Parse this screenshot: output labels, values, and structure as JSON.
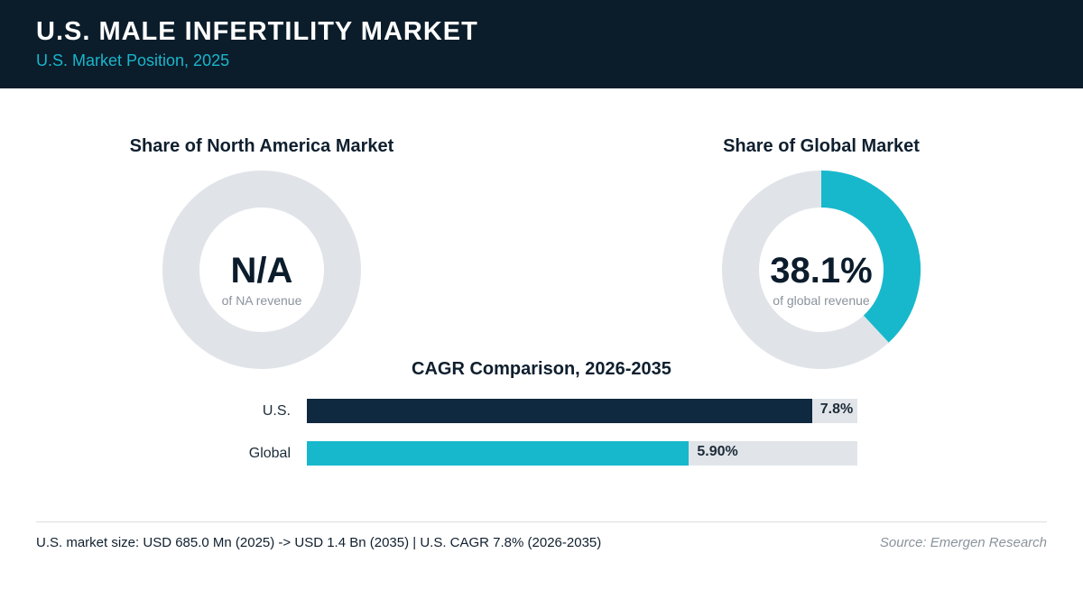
{
  "header": {
    "title": "U.S. MALE INFERTILITY MARKET",
    "subtitle": "U.S. Market Position, 2025"
  },
  "colors": {
    "header_bg": "#0b1c2a",
    "accent": "#17b8cc",
    "dark_bar": "#0f2940",
    "track": "#e1e5e9"
  },
  "chart_data": [
    {
      "type": "pie",
      "title": "Share of North America Market",
      "value_label": "N/A",
      "caption": "of NA revenue",
      "share_percent": null
    },
    {
      "type": "pie",
      "title": "Share of Global Market",
      "value_label": "38.1%",
      "caption": "of global revenue",
      "share_percent": 38.1
    },
    {
      "type": "bar",
      "orientation": "horizontal",
      "title": "CAGR Comparison, 2026-2035",
      "categories": [
        "U.S.",
        "Global"
      ],
      "values": [
        7.8,
        5.9
      ],
      "value_labels": [
        "7.8%",
        "5.90%"
      ],
      "colors": [
        "#0f2940",
        "#17b8cc"
      ],
      "xlim": [
        0,
        8.5
      ]
    }
  ],
  "footer": {
    "note": "U.S. market size: USD 685.0 Mn (2025) -> USD 1.4 Bn (2035)  |  U.S. CAGR 7.8% (2026-2035)",
    "source": "Source: Emergen Research"
  }
}
